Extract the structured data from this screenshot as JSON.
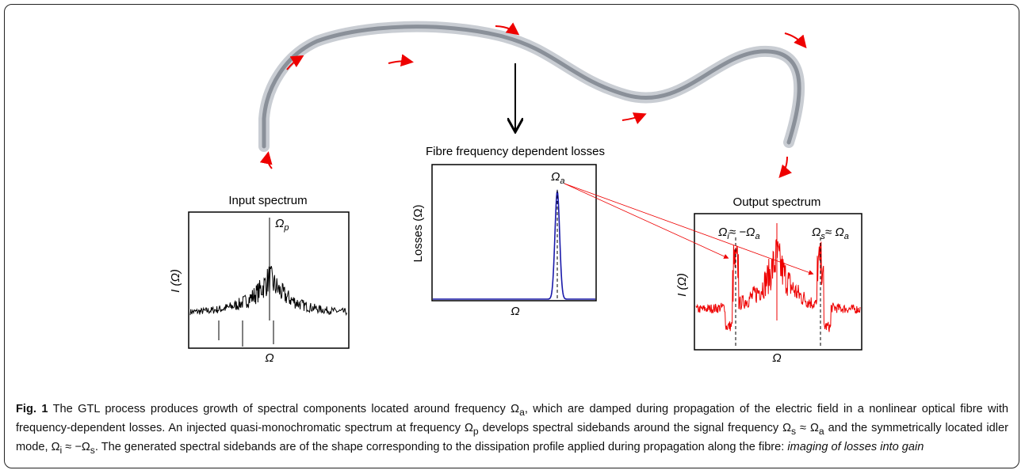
{
  "figure": {
    "input_panel": {
      "title": "Input spectrum",
      "peak_label": [
        "Ω",
        "p"
      ],
      "y_label": "I (Ω)",
      "x_label": "Ω"
    },
    "loss_panel": {
      "title": "Fibre frequency dependent losses",
      "peak_label": [
        "Ω",
        "a"
      ],
      "y_label": "Losses (Ω)",
      "x_label": "Ω"
    },
    "output_panel": {
      "title": "Output spectrum",
      "left_label": [
        "Ω",
        "i",
        "≈ −Ω",
        "a"
      ],
      "right_label": [
        "Ω",
        "s",
        "≈ Ω",
        "a"
      ],
      "y_label": "I (Ω)",
      "x_label": "Ω"
    },
    "caption": [
      {
        "text": "Fig. 1",
        "style": "bold"
      },
      {
        "text": " The GTL process produces growth of spectral components located around frequency Ω",
        "style": "normal"
      },
      {
        "text": "a",
        "style": "sub"
      },
      {
        "text": ", which are damped during propagation of the electric field in a nonlinear optical fibre with frequency-dependent losses. An injected quasi-monochromatic spectrum at frequency Ω",
        "style": "normal"
      },
      {
        "text": "p",
        "style": "sub"
      },
      {
        "text": "  develops spectral sidebands around the signal frequency Ω",
        "style": "normal"
      },
      {
        "text": "s",
        "style": "sub"
      },
      {
        "text": " ≈ Ω",
        "style": "normal"
      },
      {
        "text": "a",
        "style": "sub"
      },
      {
        "text": " and the symmetrically located idler mode, Ω",
        "style": "normal"
      },
      {
        "text": "i",
        "style": "sub"
      },
      {
        "text": " ≈ −Ω",
        "style": "normal"
      },
      {
        "text": "s",
        "style": "sub"
      },
      {
        "text": ". The generated spectral sidebands are of the shape corresponding to the dissipation profile applied during propagation along the fibre: ",
        "style": "normal"
      },
      {
        "text": "imaging of losses into gain",
        "style": "italic"
      }
    ]
  }
}
